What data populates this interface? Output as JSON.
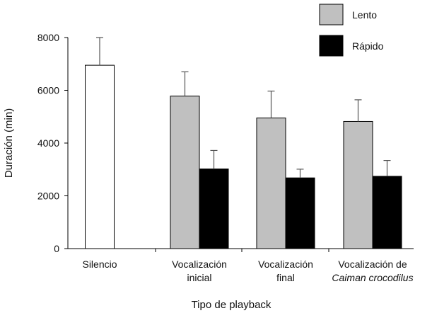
{
  "chart_data": {
    "type": "bar",
    "xlabel": "Tipo de playback",
    "ylabel": "Duración (min)",
    "ylim": [
      0,
      8000
    ],
    "yticks": [
      "0",
      "2000",
      "4000",
      "6000",
      "8000"
    ],
    "legend_position": "top-right",
    "grid": false,
    "categories": [
      {
        "lines": [
          "Silencio"
        ],
        "italic": false
      },
      {
        "lines": [
          "Vocalización",
          "inicial"
        ],
        "italic": false
      },
      {
        "lines": [
          "Vocalización",
          "final"
        ],
        "italic": false
      },
      {
        "lines": [
          "Vocalización de",
          "Caiman crocodilus"
        ],
        "italic_second_line": true
      }
    ],
    "series": [
      {
        "name": "Lento",
        "color": "#c0c0c0"
      },
      {
        "name": "Rápido",
        "color": "#000000"
      }
    ],
    "bars": [
      {
        "category": 0,
        "series": null,
        "color": "#ffffff",
        "value": 6950,
        "error": 1050
      },
      {
        "category": 1,
        "series": 0,
        "value": 5780,
        "error": 920
      },
      {
        "category": 1,
        "series": 1,
        "value": 3020,
        "error": 700
      },
      {
        "category": 2,
        "series": 0,
        "value": 4950,
        "error": 1020
      },
      {
        "category": 2,
        "series": 1,
        "value": 2680,
        "error": 330
      },
      {
        "category": 3,
        "series": 0,
        "value": 4820,
        "error": 820
      },
      {
        "category": 3,
        "series": 1,
        "value": 2740,
        "error": 600
      }
    ]
  }
}
